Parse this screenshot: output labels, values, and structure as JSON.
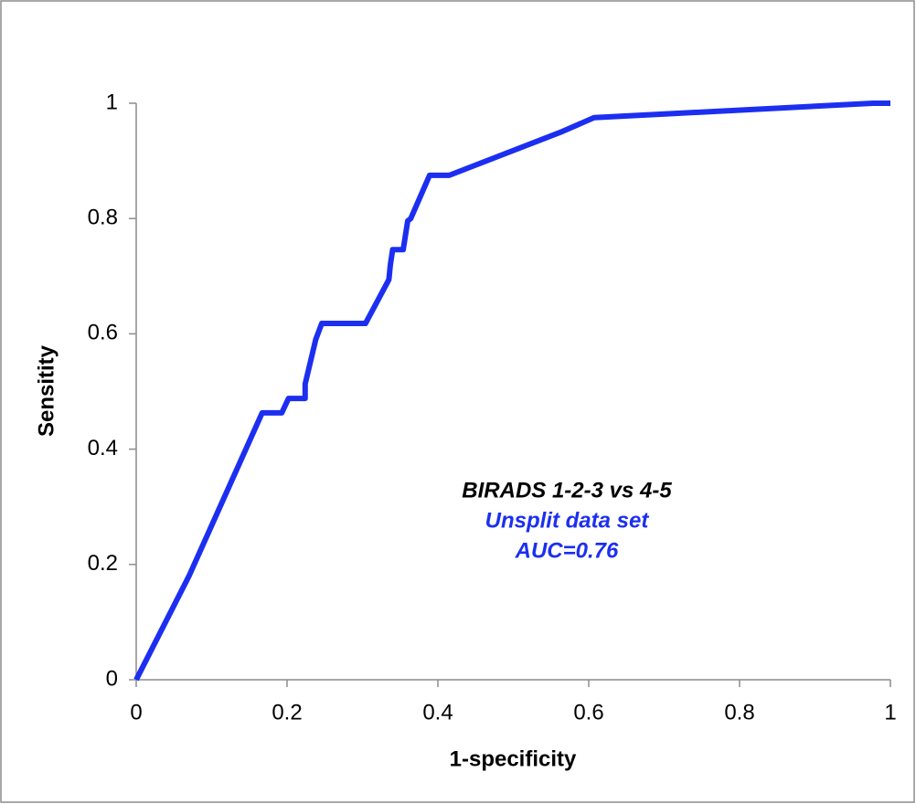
{
  "chart_data": {
    "type": "line",
    "x_label": "1-specificity",
    "y_label": "Sensitity",
    "x": [
      0,
      0.07,
      0.167,
      0.193,
      0.202,
      0.224,
      0.224,
      0.238,
      0.246,
      0.304,
      0.335,
      0.337,
      0.34,
      0.354,
      0.36,
      0.364,
      0.389,
      0.415,
      0.565,
      0.607,
      0.977,
      1
    ],
    "series": [
      {
        "color": "#1c2ff0",
        "values": [
          0,
          0.18,
          0.463,
          0.463,
          0.488,
          0.488,
          0.513,
          0.59,
          0.618,
          0.618,
          0.694,
          0.72,
          0.746,
          0.746,
          0.796,
          0.8,
          0.875,
          0.875,
          0.951,
          0.975,
          1,
          1
        ]
      }
    ],
    "xlim": [
      0,
      1
    ],
    "ylim": [
      0,
      1
    ],
    "xticks": [
      0,
      0.2,
      0.4,
      0.6,
      0.8,
      1
    ],
    "yticks": [
      0,
      0.2,
      0.4,
      0.6,
      0.8,
      1
    ],
    "grid": false,
    "annotations": [
      {
        "text": "BIRADS 1-2-3 vs 4-5",
        "color": "#000000"
      },
      {
        "text": "Unsplit data set",
        "color": "#1c2ff0"
      },
      {
        "text": "AUC=0.76",
        "color": "#1c2ff0"
      }
    ]
  }
}
